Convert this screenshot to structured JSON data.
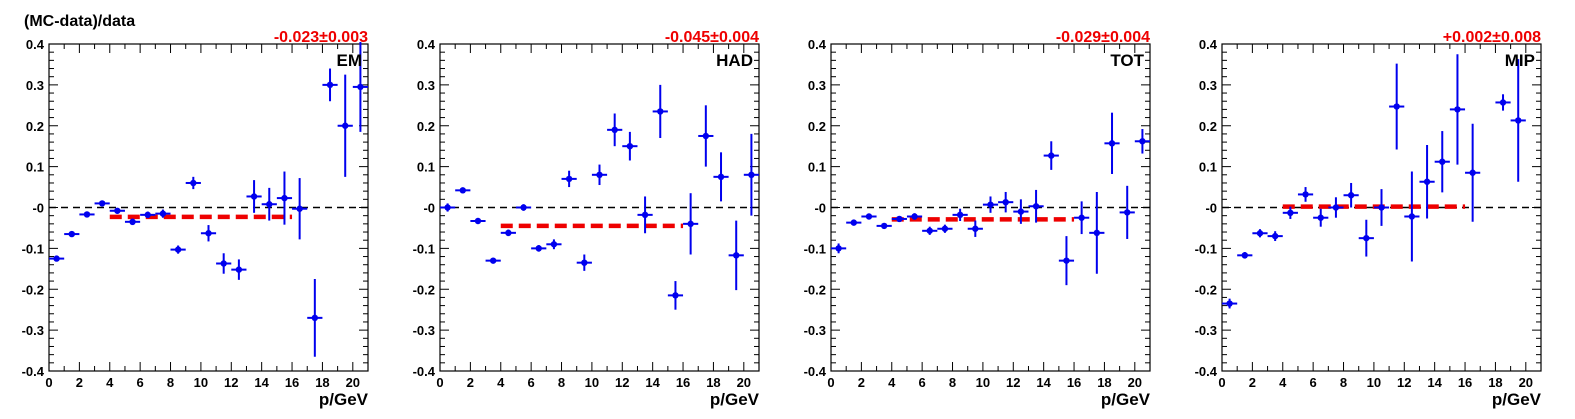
{
  "figure": {
    "ylabel": "(MC-data)/data"
  },
  "style": {
    "marker_color": "#0000ee",
    "fit_color": "#ee0000",
    "zero_line_color": "#000000",
    "fit_text_color": "#ee0000"
  },
  "chart_data": [
    {
      "type": "scatter",
      "label": "EM",
      "fit_text": "-0.023±0.003",
      "fit_value": -0.023,
      "fit_range": [
        4,
        16
      ],
      "xlabel": "p/GeV",
      "xlim": [
        0,
        21
      ],
      "ylim": [
        -0.4,
        0.4
      ],
      "xticks": [
        "0",
        "2",
        "4",
        "6",
        "8",
        "10",
        "12",
        "14",
        "16",
        "18",
        "20"
      ],
      "yticks": [
        "-0.4",
        "-0.3",
        "-0.2",
        "-0.1",
        "-0",
        "0.1",
        "0.2",
        "0.3",
        "0.4"
      ],
      "x": [
        0.5,
        1.5,
        2.5,
        3.5,
        4.5,
        5.5,
        6.5,
        7.5,
        8.5,
        9.5,
        10.5,
        11.5,
        12.5,
        13.5,
        14.5,
        15.5,
        16.5,
        17.5,
        18.5,
        19.5,
        20.5
      ],
      "y": [
        -0.125,
        -0.065,
        -0.017,
        0.01,
        -0.008,
        -0.035,
        -0.018,
        -0.015,
        -0.103,
        0.06,
        -0.063,
        -0.137,
        -0.152,
        0.027,
        0.008,
        0.023,
        -0.003,
        -0.27,
        0.3,
        0.2,
        0.295
      ],
      "err": [
        0.007,
        0.005,
        0.005,
        0.006,
        0.006,
        0.008,
        0.008,
        0.01,
        0.01,
        0.015,
        0.02,
        0.025,
        0.025,
        0.04,
        0.04,
        0.065,
        0.075,
        0.095,
        0.04,
        0.125,
        0.11
      ]
    },
    {
      "type": "scatter",
      "label": "HAD",
      "fit_text": "-0.045±0.004",
      "fit_value": -0.045,
      "fit_range": [
        4,
        16
      ],
      "xlabel": "p/GeV",
      "xlim": [
        0,
        21
      ],
      "ylim": [
        -0.4,
        0.4
      ],
      "xticks": [
        "0",
        "2",
        "4",
        "6",
        "8",
        "10",
        "12",
        "14",
        "16",
        "18",
        "20"
      ],
      "yticks": [
        "-0.4",
        "-0.3",
        "-0.2",
        "-0.1",
        "-0",
        "0.1",
        "0.2",
        "0.3",
        "0.4"
      ],
      "x": [
        0.5,
        1.5,
        2.5,
        3.5,
        4.5,
        5.5,
        6.5,
        7.5,
        8.5,
        9.5,
        10.5,
        11.5,
        12.5,
        13.5,
        14.5,
        15.5,
        16.5,
        17.5,
        18.5,
        19.5,
        20.5
      ],
      "y": [
        0.0,
        0.042,
        -0.033,
        -0.13,
        -0.062,
        0.0,
        -0.1,
        -0.09,
        0.07,
        -0.135,
        0.08,
        0.19,
        0.15,
        -0.018,
        0.235,
        -0.215,
        -0.04,
        0.175,
        0.075,
        -0.117,
        0.08
      ],
      "err": [
        0.01,
        0.006,
        0.006,
        0.006,
        0.008,
        0.008,
        0.008,
        0.012,
        0.02,
        0.02,
        0.025,
        0.04,
        0.035,
        0.045,
        0.065,
        0.035,
        0.075,
        0.075,
        0.06,
        0.085,
        0.1
      ]
    },
    {
      "type": "scatter",
      "label": "TOT",
      "fit_text": "-0.029±0.004",
      "fit_value": -0.029,
      "fit_range": [
        4,
        16
      ],
      "xlabel": "p/GeV",
      "xlim": [
        0,
        21
      ],
      "ylim": [
        -0.4,
        0.4
      ],
      "xticks": [
        "0",
        "2",
        "4",
        "6",
        "8",
        "10",
        "12",
        "14",
        "16",
        "18",
        "20"
      ],
      "yticks": [
        "-0.4",
        "-0.3",
        "-0.2",
        "-0.1",
        "-0",
        "0.1",
        "0.2",
        "0.3",
        "0.4"
      ],
      "x": [
        0.5,
        1.5,
        2.5,
        3.5,
        4.5,
        5.5,
        6.5,
        7.5,
        8.5,
        9.5,
        10.5,
        11.5,
        12.5,
        13.5,
        14.5,
        15.5,
        16.5,
        17.5,
        18.5,
        19.5,
        20.5
      ],
      "y": [
        -0.1,
        -0.037,
        -0.022,
        -0.045,
        -0.028,
        -0.022,
        -0.057,
        -0.052,
        -0.018,
        -0.052,
        0.007,
        0.013,
        -0.01,
        0.003,
        0.127,
        -0.13,
        -0.025,
        -0.062,
        0.157,
        -0.012,
        0.162
      ],
      "err": [
        0.012,
        0.006,
        0.006,
        0.006,
        0.006,
        0.008,
        0.01,
        0.01,
        0.015,
        0.02,
        0.02,
        0.025,
        0.03,
        0.04,
        0.035,
        0.06,
        0.04,
        0.1,
        0.075,
        0.065,
        0.03
      ]
    },
    {
      "type": "scatter",
      "label": "MIP",
      "fit_text": "+0.002±0.008",
      "fit_value": 0.002,
      "fit_range": [
        4,
        16
      ],
      "xlabel": "p/GeV",
      "xlim": [
        0,
        21
      ],
      "ylim": [
        -0.4,
        0.4
      ],
      "xticks": [
        "0",
        "2",
        "4",
        "6",
        "8",
        "10",
        "12",
        "14",
        "16",
        "18",
        "20"
      ],
      "yticks": [
        "-0.4",
        "-0.3",
        "-0.2",
        "-0.1",
        "-0",
        "0.1",
        "0.2",
        "0.3",
        "0.4"
      ],
      "x": [
        0.5,
        1.5,
        2.5,
        3.5,
        4.5,
        5.5,
        6.5,
        7.5,
        8.5,
        9.5,
        10.5,
        11.5,
        12.5,
        13.5,
        14.5,
        15.5,
        16.5,
        18.5,
        19.5
      ],
      "y": [
        -0.235,
        -0.117,
        -0.063,
        -0.07,
        -0.013,
        0.032,
        -0.025,
        0.0,
        0.03,
        -0.075,
        0.0,
        0.247,
        -0.022,
        0.063,
        0.112,
        0.24,
        0.085,
        0.257,
        0.213
      ],
      "err": [
        0.012,
        0.008,
        0.01,
        0.012,
        0.015,
        0.018,
        0.022,
        0.025,
        0.03,
        0.045,
        0.045,
        0.105,
        0.11,
        0.09,
        0.075,
        0.135,
        0.12,
        0.02,
        0.15
      ]
    }
  ]
}
